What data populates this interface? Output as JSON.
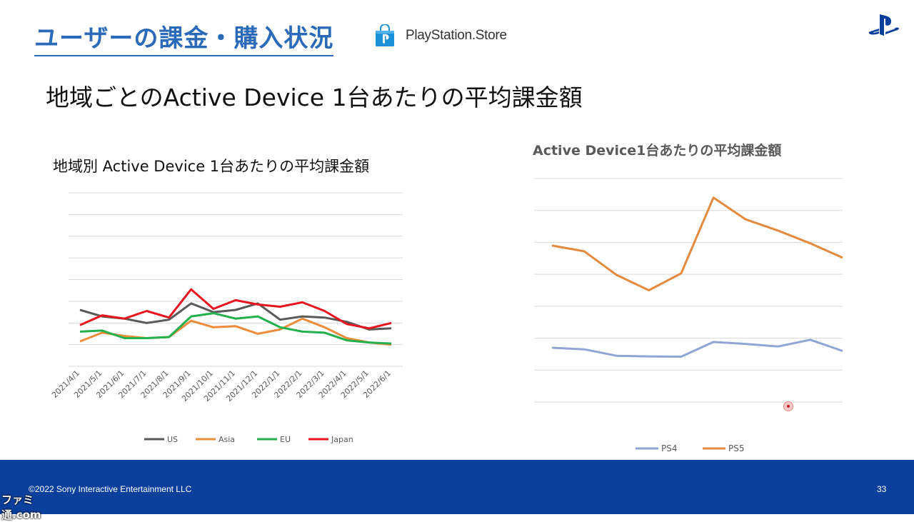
{
  "slide": {
    "title": "ユーザーの課金・購入状況",
    "store_name": "PlayStation.Store",
    "subtitle": "地域ごとのActive Device 1台あたりの平均課金額"
  },
  "footer": {
    "copyright": "©2022 Sony Interactive Entertainment LLC",
    "page_number": "33",
    "watermark": "ファミ通.com"
  },
  "colors": {
    "title_blue": "#2a6ab8",
    "footer_blue": "#0a3f9c",
    "US": "#595959",
    "Asia": "#ed8c3a",
    "EU": "#22b14c",
    "Japan": "#e8151f",
    "PS4": "#8fa5d6",
    "PS5": "#e38a3e"
  },
  "chart_data": [
    {
      "type": "line",
      "title": "地域別 Active Device 1台あたりの平均課金額",
      "categories": [
        "2021/4/1",
        "2021/5/1",
        "2021/6/1",
        "2021/7/1",
        "2021/8/1",
        "2021/9/1",
        "2021/10/1",
        "2021/11/1",
        "2021/12/1",
        "2022/1/1",
        "2022/2/1",
        "2022/3/1",
        "2022/4/1",
        "2022/5/1",
        "2022/6/1"
      ],
      "ylim": [
        0,
        8
      ],
      "grid": true,
      "legend": "bottom",
      "series": [
        {
          "name": "US",
          "values": [
            2.6,
            2.3,
            2.2,
            2.0,
            2.15,
            2.9,
            2.5,
            2.6,
            2.9,
            2.15,
            2.3,
            2.25,
            2.05,
            1.7,
            1.75
          ]
        },
        {
          "name": "Asia",
          "values": [
            1.15,
            1.55,
            1.4,
            1.3,
            1.35,
            2.1,
            1.8,
            1.85,
            1.5,
            1.7,
            2.2,
            1.8,
            1.3,
            1.1,
            1.0
          ]
        },
        {
          "name": "EU",
          "values": [
            1.6,
            1.65,
            1.3,
            1.3,
            1.35,
            2.3,
            2.45,
            2.2,
            2.3,
            1.8,
            1.6,
            1.55,
            1.2,
            1.1,
            1.05
          ]
        },
        {
          "name": "Japan",
          "values": [
            1.9,
            2.35,
            2.2,
            2.55,
            2.25,
            3.55,
            2.65,
            3.05,
            2.85,
            2.75,
            2.95,
            2.55,
            1.95,
            1.75,
            2.0
          ]
        }
      ]
    },
    {
      "type": "line",
      "title": "Active Device1台あたりの平均課金額",
      "x": [
        1,
        2,
        3,
        4,
        5,
        6,
        7,
        8,
        9,
        10
      ],
      "ylim": [
        0,
        7
      ],
      "grid": true,
      "legend": "bottom",
      "series": [
        {
          "name": "PS4",
          "values": [
            1.7,
            1.65,
            1.45,
            1.43,
            1.42,
            1.88,
            1.82,
            1.74,
            1.95,
            1.6
          ]
        },
        {
          "name": "PS5",
          "values": [
            4.9,
            4.72,
            3.98,
            3.5,
            4.03,
            6.4,
            5.72,
            5.37,
            4.97,
            4.52
          ]
        }
      ]
    }
  ]
}
